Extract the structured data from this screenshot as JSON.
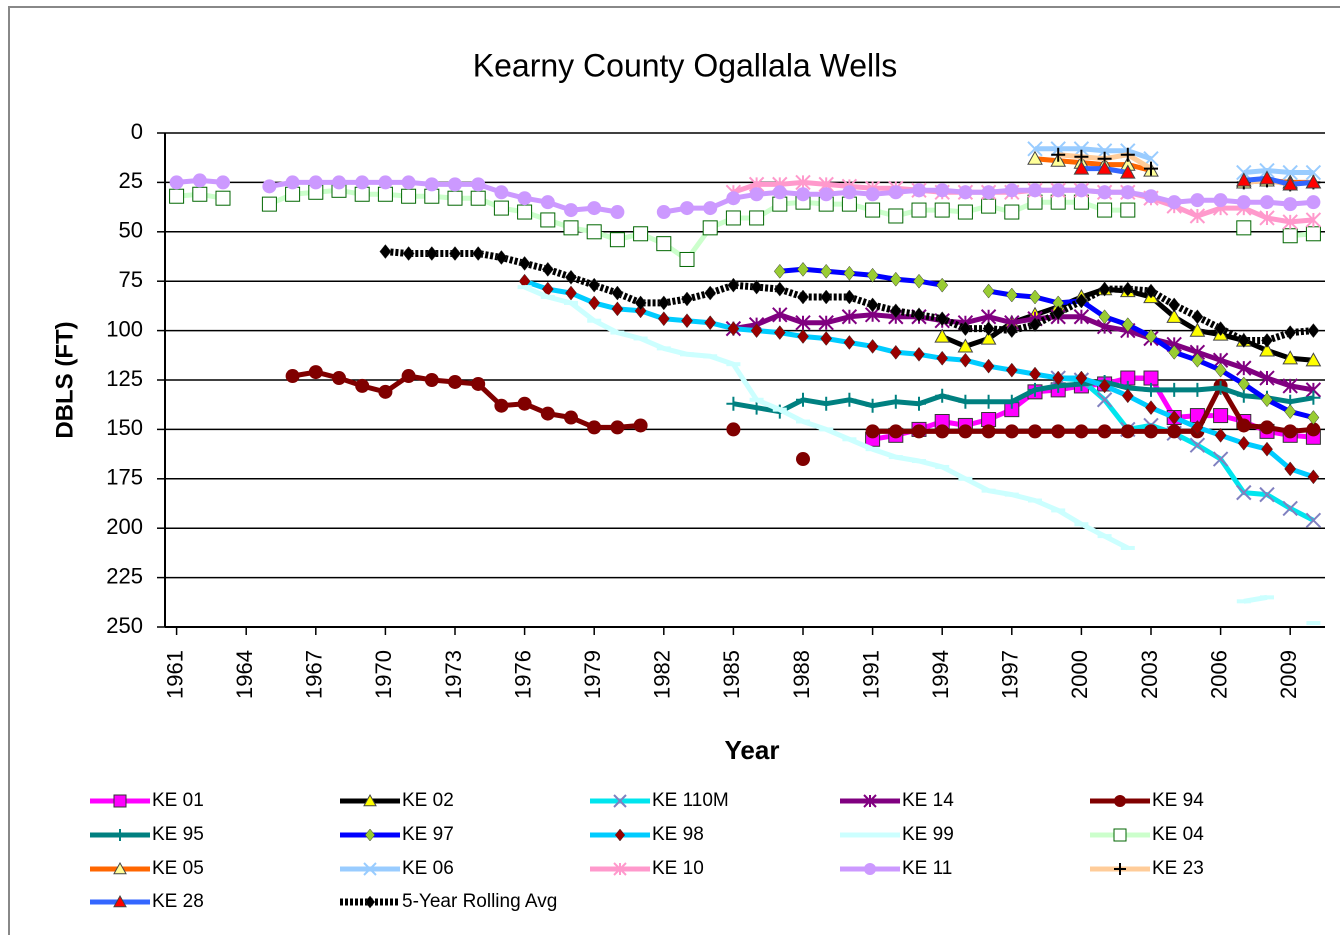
{
  "chart_data": {
    "type": "line",
    "title": "Kearny County Ogallala Wells",
    "x_label": "Year",
    "y_label": "DBLS (FT)",
    "x": [
      1961,
      1962,
      1963,
      1964,
      1965,
      1966,
      1967,
      1968,
      1969,
      1970,
      1971,
      1972,
      1973,
      1974,
      1975,
      1976,
      1977,
      1978,
      1979,
      1980,
      1981,
      1982,
      1983,
      1984,
      1985,
      1986,
      1987,
      1988,
      1989,
      1990,
      1991,
      1992,
      1993,
      1994,
      1995,
      1996,
      1997,
      1998,
      1999,
      2000,
      2001,
      2002,
      2003,
      2004,
      2005,
      2006,
      2007,
      2008,
      2009,
      2010
    ],
    "xlim": [
      1960.5,
      2010.5
    ],
    "xticks": [
      1961,
      1964,
      1967,
      1970,
      1973,
      1976,
      1979,
      1982,
      1985,
      1988,
      1991,
      1994,
      1997,
      2000,
      2003,
      2006,
      2009
    ],
    "ylim": [
      0,
      250
    ],
    "yticks": [
      0,
      25,
      50,
      75,
      100,
      125,
      150,
      175,
      200,
      225,
      250
    ],
    "y_inverted": true,
    "grid": true,
    "legend": "bottom",
    "series": [
      {
        "name": "KE 01",
        "color": "#ff00ff",
        "marker": "square",
        "marker_color": "#ff00ff",
        "values": [
          null,
          null,
          null,
          null,
          null,
          null,
          null,
          null,
          null,
          null,
          null,
          null,
          null,
          null,
          null,
          null,
          null,
          null,
          null,
          null,
          null,
          null,
          null,
          null,
          null,
          null,
          null,
          null,
          null,
          null,
          155,
          153,
          150,
          146,
          148,
          145,
          140,
          131,
          130,
          128,
          127,
          124,
          124,
          144,
          143,
          143,
          146,
          151,
          153,
          154
        ]
      },
      {
        "name": "KE 02",
        "color": "#000000",
        "marker": "triangle",
        "marker_color": "#ffff00",
        "values": [
          null,
          null,
          null,
          null,
          null,
          null,
          null,
          null,
          null,
          null,
          null,
          null,
          null,
          null,
          null,
          null,
          null,
          null,
          null,
          null,
          null,
          null,
          null,
          null,
          null,
          null,
          null,
          null,
          null,
          null,
          null,
          null,
          null,
          103,
          108,
          104,
          96,
          92,
          88,
          83,
          79,
          80,
          83,
          93,
          100,
          102,
          105,
          110,
          114,
          115
        ]
      },
      {
        "name": "KE 110M",
        "color": "#00e5ee",
        "marker": "x",
        "marker_color": "#8080c0",
        "values": [
          null,
          null,
          null,
          null,
          null,
          null,
          null,
          null,
          null,
          null,
          null,
          null,
          null,
          null,
          null,
          null,
          null,
          null,
          null,
          null,
          null,
          null,
          null,
          null,
          null,
          null,
          null,
          null,
          null,
          null,
          null,
          null,
          null,
          null,
          null,
          null,
          null,
          null,
          124,
          125,
          135,
          150,
          148,
          152,
          158,
          165,
          182,
          183,
          190,
          196
        ]
      },
      {
        "name": "KE 14",
        "color": "#800080",
        "marker": "star",
        "marker_color": "#800080",
        "values": [
          null,
          null,
          null,
          null,
          null,
          null,
          null,
          null,
          null,
          null,
          null,
          null,
          null,
          null,
          null,
          null,
          null,
          null,
          null,
          null,
          null,
          null,
          null,
          null,
          99,
          97,
          92,
          96,
          96,
          93,
          92,
          93,
          93,
          95,
          96,
          93,
          96,
          94,
          93,
          93,
          98,
          100,
          104,
          107,
          111,
          115,
          119,
          124,
          128,
          130
        ]
      },
      {
        "name": "KE 94",
        "color": "#800000",
        "marker": "circle",
        "marker_color": "#800000",
        "values": [
          null,
          null,
          null,
          null,
          null,
          123,
          121,
          124,
          128,
          131,
          123,
          125,
          126,
          127,
          138,
          137,
          142,
          144,
          149,
          149,
          148,
          null,
          null,
          null,
          150,
          null,
          null,
          165,
          null,
          null,
          151,
          151,
          151,
          151,
          151,
          151,
          151,
          151,
          151,
          151,
          151,
          151,
          151,
          151,
          151,
          128,
          148,
          149,
          151,
          150
        ]
      },
      {
        "name": "KE 95",
        "color": "#008080",
        "marker": "plus",
        "marker_color": "#008080",
        "values": [
          null,
          null,
          null,
          null,
          null,
          null,
          null,
          null,
          null,
          null,
          null,
          null,
          null,
          null,
          null,
          null,
          null,
          null,
          null,
          null,
          null,
          null,
          null,
          null,
          137,
          139,
          141,
          135,
          137,
          135,
          138,
          136,
          137,
          133,
          136,
          136,
          136,
          130,
          128,
          127,
          126,
          129,
          130,
          130,
          130,
          129,
          133,
          134,
          136,
          134
        ]
      },
      {
        "name": "KE 97",
        "color": "#0000ff",
        "marker": "diamond",
        "marker_color": "#99cc33",
        "values": [
          null,
          null,
          null,
          null,
          null,
          null,
          null,
          null,
          null,
          null,
          null,
          null,
          null,
          null,
          null,
          null,
          null,
          null,
          null,
          null,
          null,
          null,
          null,
          null,
          null,
          null,
          70,
          69,
          70,
          71,
          72,
          74,
          75,
          77,
          null,
          80,
          82,
          83,
          86,
          85,
          93,
          97,
          103,
          111,
          115,
          120,
          127,
          135,
          141,
          144
        ]
      },
      {
        "name": "KE 98",
        "color": "#00ccff",
        "marker": "diamond",
        "marker_color": "#990000",
        "values": [
          null,
          null,
          null,
          null,
          null,
          null,
          null,
          null,
          null,
          null,
          null,
          null,
          null,
          null,
          null,
          75,
          79,
          81,
          86,
          89,
          90,
          94,
          95,
          96,
          99,
          100,
          101,
          103,
          104,
          106,
          108,
          111,
          112,
          114,
          115,
          118,
          120,
          122,
          124,
          124,
          128,
          133,
          139,
          144,
          149,
          153,
          157,
          160,
          170,
          174
        ]
      },
      {
        "name": "KE 99",
        "color": "#ccffff",
        "marker": "dash",
        "marker_color": "#ccffff",
        "values": [
          null,
          null,
          null,
          null,
          null,
          null,
          null,
          null,
          null,
          null,
          null,
          null,
          null,
          null,
          null,
          78,
          83,
          86,
          95,
          101,
          104,
          109,
          112,
          113,
          117,
          135,
          140,
          146,
          150,
          155,
          160,
          164,
          166,
          169,
          175,
          181,
          183,
          186,
          191,
          198,
          204,
          210,
          null,
          null,
          null,
          null,
          237,
          235,
          null,
          248
        ]
      },
      {
        "name": "KE 04",
        "color": "#ccffcc",
        "marker": "square",
        "marker_color": "#ffffff",
        "values": [
          32,
          31,
          33,
          null,
          36,
          31,
          30,
          29,
          31,
          31,
          32,
          32,
          33,
          33,
          38,
          40,
          44,
          48,
          50,
          54,
          51,
          56,
          64,
          48,
          43,
          43,
          36,
          35,
          36,
          36,
          39,
          42,
          39,
          39,
          40,
          37,
          40,
          35,
          35,
          35,
          39,
          39,
          null,
          null,
          null,
          null,
          48,
          null,
          52,
          51
        ]
      },
      {
        "name": "KE 05",
        "color": "#ff6600",
        "marker": "triangle",
        "marker_color": "#ffff99",
        "values": [
          null,
          null,
          null,
          null,
          null,
          null,
          null,
          null,
          null,
          null,
          null,
          null,
          null,
          null,
          null,
          null,
          null,
          null,
          null,
          null,
          null,
          null,
          null,
          null,
          null,
          null,
          null,
          null,
          null,
          null,
          null,
          null,
          null,
          null,
          null,
          null,
          null,
          13,
          14,
          15,
          16,
          16,
          19,
          null,
          null,
          null,
          25,
          24,
          25,
          25
        ]
      },
      {
        "name": "KE 06",
        "color": "#99ccff",
        "marker": "x",
        "marker_color": "#99ccff",
        "values": [
          null,
          null,
          null,
          null,
          null,
          null,
          null,
          null,
          null,
          null,
          null,
          null,
          null,
          null,
          null,
          null,
          null,
          null,
          null,
          null,
          null,
          null,
          null,
          null,
          null,
          null,
          null,
          null,
          null,
          null,
          null,
          null,
          null,
          null,
          null,
          null,
          null,
          8,
          8,
          8,
          9,
          9,
          13,
          null,
          null,
          null,
          20,
          19,
          20,
          20
        ]
      },
      {
        "name": "KE 10",
        "color": "#ff99cc",
        "marker": "star",
        "marker_color": "#ff99cc",
        "values": [
          null,
          null,
          null,
          null,
          null,
          null,
          null,
          null,
          null,
          null,
          null,
          null,
          null,
          null,
          null,
          null,
          null,
          null,
          null,
          null,
          null,
          null,
          null,
          null,
          30,
          26,
          26,
          25,
          26,
          27,
          28,
          28,
          29,
          30,
          30,
          30,
          30,
          29,
          29,
          29,
          30,
          30,
          33,
          37,
          42,
          38,
          38,
          43,
          45,
          44
        ]
      },
      {
        "name": "KE 11",
        "color": "#cc99ff",
        "marker": "circle",
        "marker_color": "#cc99ff",
        "values": [
          25,
          24,
          25,
          null,
          27,
          25,
          25,
          25,
          25,
          25,
          25,
          26,
          26,
          26,
          30,
          33,
          35,
          39,
          38,
          40,
          null,
          40,
          38,
          38,
          33,
          31,
          30,
          31,
          31,
          30,
          31,
          30,
          29,
          29,
          30,
          30,
          29,
          29,
          29,
          29,
          30,
          30,
          32,
          35,
          34,
          34,
          35,
          35,
          36,
          35
        ]
      },
      {
        "name": "KE 23",
        "color": "#ffcc99",
        "marker": "plus",
        "marker_color": "#000000",
        "values": [
          null,
          null,
          null,
          null,
          null,
          null,
          null,
          null,
          null,
          null,
          null,
          null,
          null,
          null,
          null,
          null,
          null,
          null,
          null,
          null,
          null,
          null,
          null,
          null,
          null,
          null,
          null,
          null,
          null,
          null,
          null,
          null,
          null,
          null,
          null,
          null,
          null,
          null,
          11,
          12,
          13,
          11,
          18,
          null,
          null,
          null,
          25,
          24,
          26,
          25
        ]
      },
      {
        "name": "KE 28",
        "color": "#3366ff",
        "marker": "triangle",
        "marker_color": "#ff0000",
        "values": [
          null,
          null,
          null,
          null,
          null,
          null,
          null,
          null,
          null,
          null,
          null,
          null,
          null,
          null,
          null,
          null,
          null,
          null,
          null,
          null,
          null,
          null,
          null,
          null,
          null,
          null,
          null,
          null,
          null,
          null,
          null,
          null,
          null,
          null,
          null,
          null,
          null,
          null,
          null,
          18,
          18,
          20,
          null,
          null,
          null,
          null,
          24,
          23,
          26,
          25
        ]
      },
      {
        "name": "5-Year Rolling Avg",
        "color": "#000000",
        "marker": "diamond",
        "marker_color": "#000000",
        "dashed": true,
        "values": [
          null,
          null,
          null,
          null,
          null,
          null,
          null,
          null,
          null,
          60,
          61,
          61,
          61,
          61,
          63,
          66,
          69,
          73,
          77,
          81,
          86,
          86,
          84,
          81,
          77,
          78,
          79,
          83,
          83,
          83,
          87,
          90,
          92,
          94,
          99,
          99,
          100,
          97,
          91,
          85,
          79,
          79,
          80,
          87,
          93,
          99,
          105,
          105,
          101,
          100
        ]
      }
    ]
  }
}
